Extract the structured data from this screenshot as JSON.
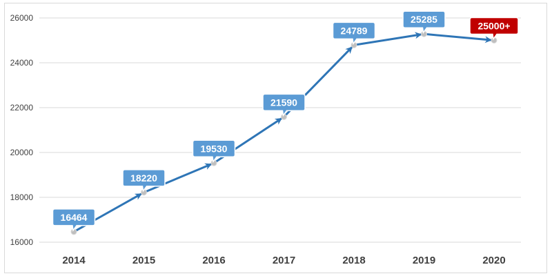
{
  "chart_data": {
    "type": "line",
    "title": "",
    "xlabel": "",
    "ylabel": "",
    "categories": [
      "2014",
      "2015",
      "2016",
      "2017",
      "2018",
      "2019",
      "2020"
    ],
    "series": [
      {
        "values": [
          16464,
          18220,
          19530,
          21590,
          24789,
          25285,
          25000
        ],
        "data_labels": [
          "16464",
          "18220",
          "19530",
          "21590",
          "24789",
          "25285",
          "25000+"
        ],
        "color": "#2e75b6"
      }
    ],
    "y_ticks": [
      "16000",
      "18000",
      "20000",
      "22000",
      "24000",
      "26000"
    ],
    "ylim": [
      16000,
      26000
    ],
    "grid": true,
    "legend": "none",
    "arrowheads": true,
    "callout_color": "#5b9bd5",
    "highlight_last_color": "#c00000",
    "marker_color": "#bfbfbf"
  }
}
